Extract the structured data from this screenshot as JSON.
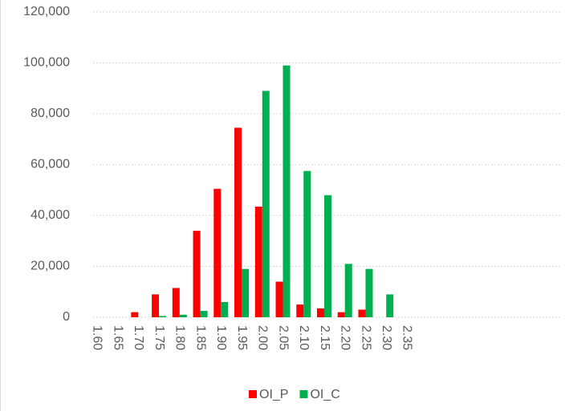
{
  "chart_data": {
    "type": "bar",
    "categories": [
      "1.60",
      "1.65",
      "1.70",
      "1.75",
      "1.80",
      "1.85",
      "1.90",
      "1.95",
      "2.00",
      "2.05",
      "2.10",
      "2.15",
      "2.20",
      "2.25",
      "2.30",
      "2.35",
      null,
      null,
      null,
      null,
      null,
      null,
      null
    ],
    "series": [
      {
        "name": "OI_P",
        "color": "#ff0000",
        "values": [
          0,
          0,
          2000,
          9000,
          11500,
          34000,
          50500,
          74500,
          43500,
          14000,
          5000,
          3500,
          2000,
          3000,
          0,
          0,
          null,
          null,
          null,
          null,
          null,
          null,
          null
        ]
      },
      {
        "name": "OI_C",
        "color": "#00b050",
        "values": [
          0,
          0,
          0,
          500,
          1000,
          2500,
          6000,
          19000,
          89000,
          99000,
          57500,
          48000,
          21000,
          19000,
          9000,
          0,
          null,
          null,
          null,
          null,
          null,
          null,
          null
        ]
      }
    ],
    "ylim": [
      0,
      120000
    ],
    "yticks": [
      0,
      {
        "value": 20000,
        "label": "20,000"
      },
      {
        "value": 40000,
        "label": "40,000"
      },
      {
        "value": 60000,
        "label": "60,000"
      },
      {
        "value": 80000,
        "label": "80,000"
      },
      {
        "value": 100000,
        "label": "100,000"
      },
      {
        "value": 120000,
        "label": "120,000"
      }
    ],
    "grid": true,
    "legend": "bottom"
  }
}
